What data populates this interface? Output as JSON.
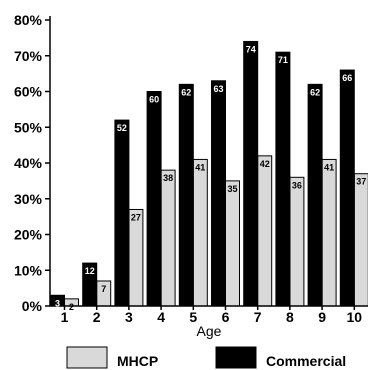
{
  "chart_data": {
    "type": "bar",
    "title": "",
    "xlabel": "Age",
    "ylabel": "",
    "categories": [
      "1",
      "2",
      "3",
      "4",
      "5",
      "6",
      "7",
      "8",
      "9",
      "10"
    ],
    "ylim": [
      0,
      80
    ],
    "yticks": [
      "0%",
      "10%",
      "20%",
      "30%",
      "40%",
      "50%",
      "60%",
      "70%",
      "80%"
    ],
    "series": [
      {
        "name": "MHCP",
        "color": "#d9d9d9",
        "values": [
          2,
          7,
          27,
          38,
          41,
          35,
          42,
          36,
          41,
          37
        ]
      },
      {
        "name": "Commercial",
        "color": "#000000",
        "values": [
          3,
          12,
          52,
          60,
          62,
          63,
          74,
          71,
          62,
          66
        ]
      }
    ],
    "legend_position": "bottom",
    "grid": false
  }
}
